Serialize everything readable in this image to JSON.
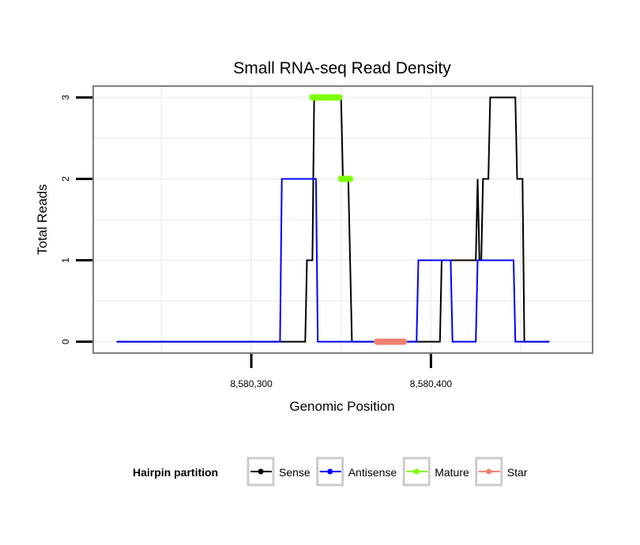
{
  "chart_data": {
    "type": "line",
    "title": "Small RNA-seq Read Density",
    "xlabel": "Genomic Position",
    "ylabel": "Total Reads",
    "xlim": [
      8580212,
      8580490
    ],
    "ylim": [
      -0.14,
      3.14
    ],
    "x_ticks": [
      8580300,
      8580400
    ],
    "x_tick_labels": [
      "8,580,300",
      "8,580,400"
    ],
    "y_ticks": [
      0,
      1,
      2,
      3
    ],
    "y_tick_labels": [
      "0",
      "1",
      "2",
      "3"
    ],
    "grid": true,
    "legend": {
      "title": "Hairpin partition",
      "position": "bottom",
      "entries": [
        {
          "name": "Sense",
          "color": "#000000"
        },
        {
          "name": "Antisense",
          "color": "#0000ff"
        },
        {
          "name": "Mature",
          "color": "#7fff00"
        },
        {
          "name": "Star",
          "color": "#f08070"
        }
      ]
    },
    "series": [
      {
        "name": "Sense",
        "color": "#000000",
        "kind": "line",
        "x": [
          8580225,
          8580330,
          8580331,
          8580334,
          8580335,
          8580336,
          8580350,
          8580351,
          8580354,
          8580355,
          8580356,
          8580369,
          8580370,
          8580405,
          8580406,
          8580425,
          8580426,
          8580427,
          8580428,
          8580429,
          8580430,
          8580432,
          8580433,
          8580436,
          8580437,
          8580447,
          8580448,
          8580451,
          8580452,
          8580466
        ],
        "y": [
          0,
          0,
          1,
          1,
          3,
          3,
          3,
          2,
          2,
          1,
          0,
          0,
          0,
          0,
          1,
          1,
          2,
          1,
          1,
          2,
          2,
          2,
          3,
          3,
          3,
          3,
          2,
          2,
          0,
          0
        ]
      },
      {
        "name": "Antisense",
        "color": "#0000ff",
        "kind": "line",
        "x": [
          8580225,
          8580316,
          8580317,
          8580336,
          8580337,
          8580350,
          8580351,
          8580380,
          8580381,
          8580392,
          8580393,
          8580411,
          8580412,
          8580425,
          8580426,
          8580446,
          8580447,
          8580466
        ],
        "y": [
          0,
          0,
          2,
          2,
          0,
          0,
          0,
          0,
          0,
          0,
          1,
          1,
          0,
          0,
          1,
          1,
          0,
          0
        ]
      },
      {
        "name": "Mature",
        "color": "#7fff00",
        "kind": "segments",
        "segments": [
          {
            "x": [
              8580334,
              8580349
            ],
            "y": 3
          },
          {
            "x": [
              8580350,
              8580355
            ],
            "y": 2
          }
        ]
      },
      {
        "name": "Star",
        "color": "#f08070",
        "kind": "segments",
        "segments": [
          {
            "x": [
              8580370,
              8580385
            ],
            "y": 0
          }
        ]
      }
    ]
  }
}
